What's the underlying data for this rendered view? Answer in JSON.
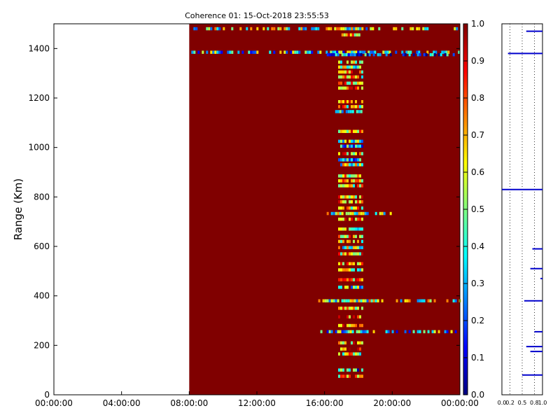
{
  "chart_data": [
    {
      "type": "heatmap",
      "title": "Coherence 01: 15-Oct-2018 23:55:53",
      "xlabel": "",
      "ylabel": "Range (Km)",
      "x_ticks": [
        "00:00:00",
        "04:00:00",
        "08:00:00",
        "12:00:00",
        "16:00:00",
        "20:00:00",
        "00:00:00"
      ],
      "x_range_hours": [
        0,
        24
      ],
      "y_ticks": [
        0,
        200,
        400,
        600,
        800,
        1000,
        1200,
        1400
      ],
      "ylim": [
        0,
        1500
      ],
      "data_start_hour": 8,
      "background_value": 1.0,
      "colorbar": {
        "colormap": "jet",
        "range": [
          0.0,
          1.0
        ],
        "ticks": [
          "0.0",
          "0.1",
          "0.2",
          "0.3",
          "0.4",
          "0.5",
          "0.6",
          "0.7",
          "0.8",
          "0.9",
          "1.0"
        ]
      },
      "horizontal_bands": [
        {
          "range_km": 1480,
          "hour_start": 8.0,
          "hour_end": 24.0,
          "value": 0.5
        },
        {
          "range_km": 1385,
          "hour_start": 8.0,
          "hour_end": 24.0,
          "value": 0.4
        },
        {
          "range_km": 1375,
          "hour_start": 16.0,
          "hour_end": 24.0,
          "value": 0.2
        },
        {
          "range_km": 733,
          "hour_start": 16.0,
          "hour_end": 20.0,
          "value": 0.5
        },
        {
          "range_km": 380,
          "hour_start": 15.5,
          "hour_end": 24.0,
          "value": 0.5
        },
        {
          "range_km": 255,
          "hour_start": 15.5,
          "hour_end": 24.0,
          "value": 0.4
        }
      ],
      "disturbed_rows": [
        {
          "range_km": 1455,
          "hour_start": 17.0,
          "hour_end": 18.0,
          "value": 0.7
        },
        {
          "range_km": 1345,
          "hour_start": 16.8,
          "hour_end": 18.2,
          "value": 0.6
        },
        {
          "range_km": 1325,
          "hour_start": 16.8,
          "hour_end": 18.2,
          "value": 0.5
        },
        {
          "range_km": 1305,
          "hour_start": 16.8,
          "hour_end": 18.2,
          "value": 0.7
        },
        {
          "range_km": 1285,
          "hour_start": 16.8,
          "hour_end": 18.2,
          "value": 0.6
        },
        {
          "range_km": 1260,
          "hour_start": 16.8,
          "hour_end": 18.2,
          "value": 0.7
        },
        {
          "range_km": 1240,
          "hour_start": 16.8,
          "hour_end": 18.2,
          "value": 0.8
        },
        {
          "range_km": 1185,
          "hour_start": 16.8,
          "hour_end": 18.2,
          "value": 0.7
        },
        {
          "range_km": 1165,
          "hour_start": 16.8,
          "hour_end": 18.2,
          "value": 0.6
        },
        {
          "range_km": 1145,
          "hour_start": 16.5,
          "hour_end": 18.3,
          "value": 0.5
        },
        {
          "range_km": 1065,
          "hour_start": 16.8,
          "hour_end": 18.2,
          "value": 0.7
        },
        {
          "range_km": 1025,
          "hour_start": 16.8,
          "hour_end": 18.2,
          "value": 0.4
        },
        {
          "range_km": 1005,
          "hour_start": 16.8,
          "hour_end": 18.2,
          "value": 0.3
        },
        {
          "range_km": 975,
          "hour_start": 16.8,
          "hour_end": 18.2,
          "value": 0.7
        },
        {
          "range_km": 950,
          "hour_start": 16.8,
          "hour_end": 18.2,
          "value": 0.4
        },
        {
          "range_km": 930,
          "hour_start": 16.8,
          "hour_end": 18.2,
          "value": 0.5
        },
        {
          "range_km": 885,
          "hour_start": 16.8,
          "hour_end": 18.2,
          "value": 0.6
        },
        {
          "range_km": 865,
          "hour_start": 16.8,
          "hour_end": 18.2,
          "value": 0.7
        },
        {
          "range_km": 845,
          "hour_start": 16.8,
          "hour_end": 18.2,
          "value": 0.6
        },
        {
          "range_km": 800,
          "hour_start": 16.8,
          "hour_end": 18.2,
          "value": 0.7
        },
        {
          "range_km": 780,
          "hour_start": 16.8,
          "hour_end": 18.2,
          "value": 0.8
        },
        {
          "range_km": 755,
          "hour_start": 16.8,
          "hour_end": 18.2,
          "value": 0.6
        },
        {
          "range_km": 710,
          "hour_start": 16.8,
          "hour_end": 18.2,
          "value": 0.7
        },
        {
          "range_km": 670,
          "hour_start": 16.8,
          "hour_end": 18.2,
          "value": 0.5
        },
        {
          "range_km": 640,
          "hour_start": 16.8,
          "hour_end": 18.2,
          "value": 0.7
        },
        {
          "range_km": 620,
          "hour_start": 16.8,
          "hour_end": 18.2,
          "value": 0.6
        },
        {
          "range_km": 595,
          "hour_start": 16.8,
          "hour_end": 18.2,
          "value": 0.5
        },
        {
          "range_km": 570,
          "hour_start": 16.8,
          "hour_end": 18.2,
          "value": 0.7
        },
        {
          "range_km": 530,
          "hour_start": 16.8,
          "hour_end": 18.2,
          "value": 0.7
        },
        {
          "range_km": 505,
          "hour_start": 16.8,
          "hour_end": 18.2,
          "value": 0.5
        },
        {
          "range_km": 465,
          "hour_start": 16.8,
          "hour_end": 18.2,
          "value": 0.7
        },
        {
          "range_km": 435,
          "hour_start": 16.8,
          "hour_end": 18.2,
          "value": 0.4
        },
        {
          "range_km": 350,
          "hour_start": 16.8,
          "hour_end": 18.2,
          "value": 0.7
        },
        {
          "range_km": 315,
          "hour_start": 16.8,
          "hour_end": 18.2,
          "value": 0.8
        },
        {
          "range_km": 280,
          "hour_start": 16.8,
          "hour_end": 18.2,
          "value": 0.7
        },
        {
          "range_km": 210,
          "hour_start": 16.8,
          "hour_end": 18.2,
          "value": 0.7
        },
        {
          "range_km": 185,
          "hour_start": 16.8,
          "hour_end": 18.2,
          "value": 0.8
        },
        {
          "range_km": 165,
          "hour_start": 16.8,
          "hour_end": 18.2,
          "value": 0.6
        },
        {
          "range_km": 100,
          "hour_start": 16.8,
          "hour_end": 18.2,
          "value": 0.3
        },
        {
          "range_km": 75,
          "hour_start": 16.8,
          "hour_end": 18.2,
          "value": 0.7
        }
      ]
    },
    {
      "type": "line",
      "title": "",
      "xlabel": "",
      "ylabel": "",
      "x_ticks": [
        "0.0",
        "0.2",
        "0.5",
        "0.8",
        "1.0"
      ],
      "xlim": [
        0,
        1
      ],
      "ylim": [
        0,
        1500
      ],
      "grid": "vertical dotted",
      "segments": [
        {
          "range_km": 1470,
          "x_start": 0.6,
          "x_end": 1.0
        },
        {
          "range_km": 1380,
          "x_start": 0.15,
          "x_end": 1.0
        },
        {
          "range_km": 830,
          "x_start": 0.0,
          "x_end": 1.0
        },
        {
          "range_km": 590,
          "x_start": 0.75,
          "x_end": 1.0
        },
        {
          "range_km": 510,
          "x_start": 0.7,
          "x_end": 1.0
        },
        {
          "range_km": 470,
          "x_start": 0.95,
          "x_end": 1.0
        },
        {
          "range_km": 380,
          "x_start": 0.55,
          "x_end": 1.0
        },
        {
          "range_km": 255,
          "x_start": 0.8,
          "x_end": 1.0
        },
        {
          "range_km": 195,
          "x_start": 0.6,
          "x_end": 1.0
        },
        {
          "range_km": 175,
          "x_start": 0.7,
          "x_end": 1.0
        },
        {
          "range_km": 80,
          "x_start": 0.5,
          "x_end": 1.0
        }
      ]
    }
  ]
}
